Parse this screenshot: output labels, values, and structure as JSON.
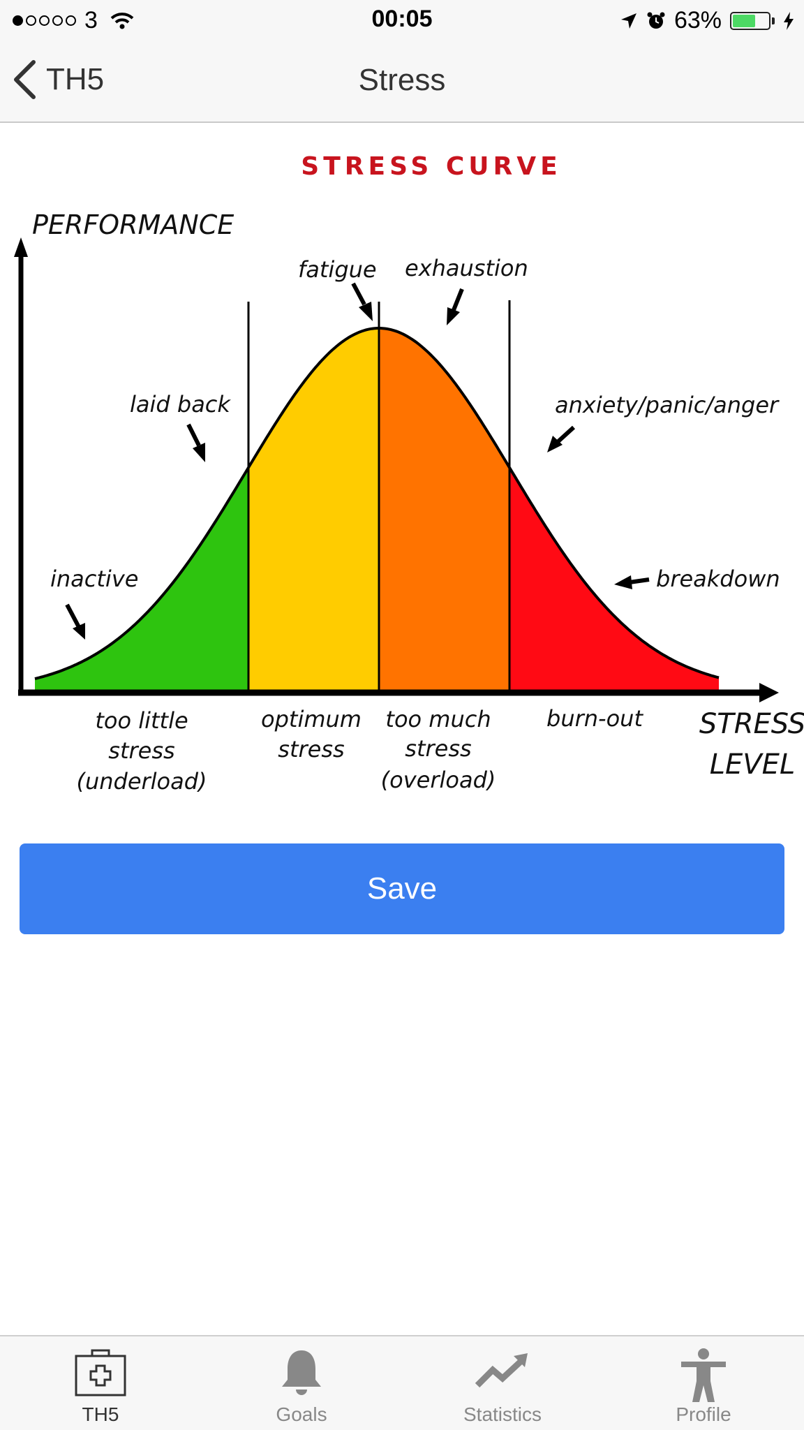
{
  "status_bar": {
    "carrier": "3",
    "time": "00:05",
    "battery": "63%",
    "battery_level": 0.63,
    "icons": [
      "signal-dots-icon",
      "wifi-icon",
      "location-arrow-icon",
      "alarm-icon",
      "battery-icon",
      "charging-bolt-icon"
    ]
  },
  "nav": {
    "back_label": "TH5",
    "title": "Stress"
  },
  "figure": {
    "title": "STRESS CURVE",
    "y_axis_label": "PERFORMANCE",
    "x_axis_label_line1": "STRESS",
    "x_axis_label_line2": "LEVEL",
    "annotations": {
      "inactive": "inactive",
      "laid_back": "laid back",
      "fatigue": "fatigue",
      "exhaustion": "exhaustion",
      "anxiety": "anxiety/panic/anger",
      "breakdown": "breakdown"
    },
    "zones": [
      {
        "line1": "too little",
        "line2": "stress",
        "line3": "(underload)",
        "color": "#2ec40f"
      },
      {
        "line1": "optimum",
        "line2": "stress",
        "line3": "",
        "color": "#ffcc00"
      },
      {
        "line1": "too much",
        "line2": "stress",
        "line3": "(overload)",
        "color": "#ff7300"
      },
      {
        "line1": "burn-out",
        "line2": "",
        "line3": "",
        "color": "#ff0a14"
      }
    ],
    "title_color": "#c8141e"
  },
  "save_label": "Save",
  "accent_color": "#3b7ff0",
  "tabs": [
    {
      "label": "TH5",
      "icon": "medical-kit-icon",
      "active": true
    },
    {
      "label": "Goals",
      "icon": "bell-icon",
      "active": false
    },
    {
      "label": "Statistics",
      "icon": "trend-up-icon",
      "active": false
    },
    {
      "label": "Profile",
      "icon": "person-icon",
      "active": false
    }
  ]
}
